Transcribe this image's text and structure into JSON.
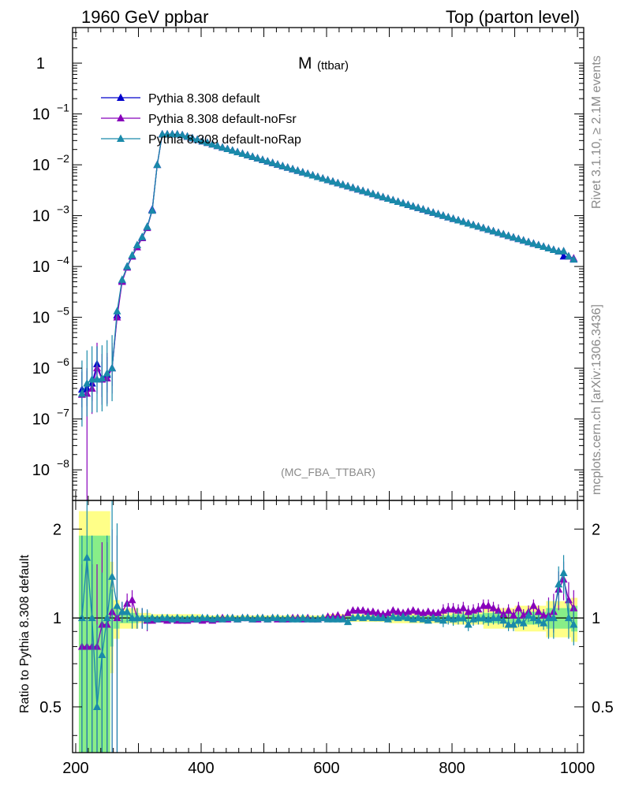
{
  "header": {
    "left": "1960 GeV ppbar",
    "right": "Top (parton level)"
  },
  "side": {
    "rivet": "Rivet 3.1.10, ≥ 2.1M events",
    "mcplots": "mcplots.cern.ch [arXiv:1306.3436]"
  },
  "plot": {
    "title_main": "M",
    "title_sub": "(ttbar)",
    "watermark": "(MC_FBA_TTBAR)"
  },
  "ratio": {
    "ylabel": "Ratio to Pythia 8.308 default"
  },
  "chart_data": {
    "type": "line",
    "x": [
      210,
      218,
      226,
      234,
      242,
      250,
      258,
      266,
      274,
      282,
      290,
      298,
      306,
      314,
      322,
      330,
      338,
      346,
      354,
      362,
      370,
      378,
      386,
      394,
      402,
      410,
      418,
      426,
      434,
      442,
      450,
      458,
      466,
      474,
      482,
      490,
      498,
      506,
      514,
      522,
      530,
      538,
      546,
      554,
      562,
      570,
      578,
      586,
      594,
      602,
      610,
      618,
      626,
      634,
      642,
      650,
      658,
      666,
      674,
      682,
      690,
      698,
      706,
      714,
      722,
      730,
      738,
      746,
      754,
      762,
      770,
      778,
      786,
      794,
      802,
      810,
      818,
      826,
      834,
      842,
      850,
      858,
      866,
      874,
      882,
      890,
      898,
      906,
      914,
      922,
      930,
      938,
      946,
      954,
      962,
      970,
      978,
      986,
      994
    ],
    "series": [
      {
        "name": "Pythia 8.308 default",
        "color": "#0000cc",
        "log10_values": [
          -6.42,
          -6.4,
          -6.3,
          -5.92,
          -6.22,
          -6.13,
          -6.0,
          -4.96,
          -4.28,
          -4.0,
          -3.8,
          -3.58,
          -3.42,
          -3.22,
          -2.88,
          -2.0,
          -1.4,
          -1.4,
          -1.4,
          -1.4,
          -1.415,
          -1.445,
          -1.476,
          -1.506,
          -1.537,
          -1.567,
          -1.598,
          -1.628,
          -1.659,
          -1.689,
          -1.72,
          -1.75,
          -1.781,
          -1.811,
          -1.842,
          -1.872,
          -1.903,
          -1.933,
          -1.964,
          -1.994,
          -2.025,
          -2.055,
          -2.086,
          -2.116,
          -2.147,
          -2.177,
          -2.208,
          -2.238,
          -2.269,
          -2.299,
          -2.33,
          -2.36,
          -2.391,
          -2.421,
          -2.452,
          -2.482,
          -2.513,
          -2.543,
          -2.574,
          -2.604,
          -2.635,
          -2.665,
          -2.696,
          -2.726,
          -2.757,
          -2.787,
          -2.818,
          -2.848,
          -2.879,
          -2.909,
          -2.94,
          -2.97,
          -3.001,
          -3.031,
          -3.062,
          -3.092,
          -3.123,
          -3.153,
          -3.184,
          -3.214,
          -3.245,
          -3.275,
          -3.306,
          -3.336,
          -3.367,
          -3.397,
          -3.428,
          -3.458,
          -3.489,
          -3.519,
          -3.55,
          -3.58,
          -3.611,
          -3.641,
          -3.672,
          -3.702,
          -3.8,
          -3.8,
          -3.86
        ]
      },
      {
        "name": "Pythia 8.308 default-noFsr",
        "color": "#8800bb",
        "log10_values": [
          -6.52,
          -6.5,
          -6.4,
          -6.0,
          -6.22,
          -6.2,
          -6.0,
          -5.0,
          -4.3,
          -4.02,
          -3.8,
          -3.62,
          -3.44,
          -3.24,
          -2.9,
          -2.0,
          -1.4,
          -1.4,
          -1.4,
          -1.4,
          -1.415,
          -1.445,
          -1.476,
          -1.506,
          -1.537,
          -1.567,
          -1.598,
          -1.628,
          -1.659,
          -1.689,
          -1.72,
          -1.75,
          -1.781,
          -1.811,
          -1.842,
          -1.872,
          -1.903,
          -1.933,
          -1.964,
          -1.994,
          -2.025,
          -2.055,
          -2.086,
          -2.116,
          -2.147,
          -2.177,
          -2.208,
          -2.238,
          -2.269,
          -2.299,
          -2.33,
          -2.36,
          -2.391,
          -2.421,
          -2.452,
          -2.482,
          -2.513,
          -2.543,
          -2.574,
          -2.604,
          -2.635,
          -2.665,
          -2.696,
          -2.726,
          -2.757,
          -2.787,
          -2.818,
          -2.848,
          -2.879,
          -2.909,
          -2.94,
          -2.97,
          -3.001,
          -3.031,
          -3.062,
          -3.092,
          -3.123,
          -3.153,
          -3.184,
          -3.214,
          -3.245,
          -3.275,
          -3.306,
          -3.336,
          -3.367,
          -3.397,
          -3.428,
          -3.458,
          -3.489,
          -3.519,
          -3.55,
          -3.58,
          -3.611,
          -3.641,
          -3.672,
          -3.702,
          -3.7,
          -3.8,
          -3.84
        ]
      },
      {
        "name": "Pythia 8.308 default-noRap",
        "color": "#1a8aaa",
        "log10_values": [
          -6.5,
          -6.3,
          -6.22,
          -6.22,
          -6.2,
          -6.1,
          -6.0,
          -4.88,
          -4.26,
          -4.0,
          -3.78,
          -3.58,
          -3.42,
          -3.22,
          -2.9,
          -2.0,
          -1.4,
          -1.4,
          -1.4,
          -1.4,
          -1.415,
          -1.445,
          -1.476,
          -1.506,
          -1.537,
          -1.567,
          -1.598,
          -1.628,
          -1.659,
          -1.689,
          -1.72,
          -1.75,
          -1.781,
          -1.811,
          -1.842,
          -1.872,
          -1.903,
          -1.933,
          -1.964,
          -1.994,
          -2.025,
          -2.055,
          -2.086,
          -2.116,
          -2.147,
          -2.177,
          -2.208,
          -2.238,
          -2.269,
          -2.299,
          -2.33,
          -2.36,
          -2.391,
          -2.421,
          -2.452,
          -2.482,
          -2.513,
          -2.543,
          -2.574,
          -2.604,
          -2.635,
          -2.665,
          -2.696,
          -2.726,
          -2.757,
          -2.787,
          -2.818,
          -2.848,
          -2.879,
          -2.909,
          -2.94,
          -2.97,
          -3.001,
          -3.031,
          -3.062,
          -3.092,
          -3.123,
          -3.153,
          -3.184,
          -3.214,
          -3.245,
          -3.275,
          -3.306,
          -3.336,
          -3.367,
          -3.397,
          -3.428,
          -3.458,
          -3.489,
          -3.519,
          -3.55,
          -3.58,
          -3.611,
          -3.641,
          -3.672,
          -3.702,
          -3.7,
          -3.8,
          -3.86
        ]
      }
    ],
    "main_yscale": "log",
    "main_ylim": [
      2.5e-09,
      5
    ],
    "main_yticks": [
      {
        "label": "1",
        "exp": ""
      },
      {
        "label": "10",
        "exp": "−1"
      },
      {
        "label": "10",
        "exp": "−2"
      },
      {
        "label": "10",
        "exp": "−3"
      },
      {
        "label": "10",
        "exp": "−4"
      },
      {
        "label": "10",
        "exp": "−5"
      },
      {
        "label": "10",
        "exp": "−6"
      },
      {
        "label": "10",
        "exp": "−7"
      },
      {
        "label": "10",
        "exp": "−8"
      }
    ],
    "ratio_series": [
      {
        "name": "Pythia 8.308 default-noFsr",
        "color": "#8800bb",
        "values": [
          0.8,
          0.8,
          0.8,
          0.8,
          0.95,
          0.95,
          1.05,
          1.0,
          1.05,
          1.12,
          1.15,
          1.0,
          1.0,
          0.98,
          0.98,
          0.99,
          0.99,
          0.98,
          0.99,
          0.98,
          0.98,
          0.98,
          0.99,
          0.99,
          0.98,
          0.99,
          0.98,
          0.99,
          1.0,
          0.99,
          1.0,
          0.99,
          1.0,
          1.0,
          0.99,
          0.99,
          1.0,
          0.99,
          1.0,
          0.99,
          0.99,
          0.99,
          1.0,
          1.0,
          0.99,
          1.0,
          0.99,
          0.99,
          1.0,
          1.01,
          1.01,
          1.02,
          1.0,
          1.04,
          1.06,
          1.06,
          1.06,
          1.05,
          1.05,
          1.04,
          1.03,
          1.04,
          1.06,
          1.05,
          1.04,
          1.05,
          1.06,
          1.05,
          1.04,
          1.05,
          1.04,
          1.04,
          1.06,
          1.07,
          1.07,
          1.06,
          1.08,
          1.05,
          1.06,
          1.07,
          1.1,
          1.1,
          1.08,
          1.06,
          1.03,
          1.06,
          1.02,
          1.08,
          1.02,
          1.05,
          1.1,
          1.05,
          1.02,
          1.02,
          1.05,
          1.25,
          1.35,
          1.15,
          1.08
        ]
      },
      {
        "name": "Pythia 8.308 default-noRap",
        "color": "#1a8aaa",
        "values": [
          1.0,
          1.6,
          1.0,
          0.5,
          0.75,
          1.0,
          1.38,
          1.1,
          1.05,
          1.05,
          1.0,
          1.0,
          1.0,
          0.99,
          1.0,
          0.99,
          1.0,
          1.0,
          0.99,
          1.0,
          0.99,
          0.99,
          1.0,
          0.99,
          1.0,
          1.0,
          0.99,
          1.0,
          0.99,
          1.0,
          1.0,
          0.99,
          1.0,
          1.0,
          0.99,
          1.0,
          1.0,
          0.99,
          1.0,
          1.0,
          0.99,
          1.0,
          0.99,
          0.99,
          1.0,
          0.99,
          0.99,
          0.99,
          1.0,
          0.99,
          0.99,
          0.99,
          0.99,
          0.97,
          1.0,
          1.01,
          1.0,
          1.01,
          1.0,
          1.0,
          1.0,
          0.99,
          1.01,
          1.0,
          1.01,
          1.0,
          0.99,
          1.0,
          0.99,
          0.98,
          1.0,
          0.99,
          0.98,
          1.0,
          0.99,
          1.0,
          1.0,
          0.95,
          0.99,
          1.0,
          1.0,
          0.99,
          1.0,
          1.0,
          0.98,
          0.95,
          0.95,
          0.98,
          0.96,
          1.02,
          1.0,
          0.98,
          0.96,
          1.0,
          1.0,
          1.3,
          1.42,
          1.0,
          0.95
        ]
      }
    ],
    "ratio_yscale": "log",
    "ratio_ylim": [
      0.35,
      2.5
    ],
    "ratio_yticks": [
      "0.5",
      "1",
      "2"
    ],
    "xlim": [
      195,
      1010
    ],
    "xticks": [
      "200",
      "400",
      "600",
      "800",
      "1000"
    ],
    "band_edges": [
      205,
      255,
      260,
      270,
      300,
      320,
      400,
      600,
      700,
      800,
      850,
      900,
      950,
      990,
      1000
    ],
    "band_yellow": [
      [
        0.35,
        2.3
      ],
      [
        0.65,
        1.55
      ],
      [
        0.85,
        1.15
      ],
      [
        0.92,
        1.08
      ],
      [
        0.96,
        1.04
      ],
      [
        0.97,
        1.03
      ],
      [
        0.98,
        1.02
      ],
      [
        0.97,
        1.03
      ],
      [
        0.96,
        1.04
      ],
      [
        0.95,
        1.05
      ],
      [
        0.92,
        1.08
      ],
      [
        0.9,
        1.1
      ],
      [
        0.86,
        1.14
      ],
      [
        0.83,
        1.17
      ]
    ],
    "band_green": [
      [
        0.35,
        1.9
      ],
      [
        0.8,
        1.25
      ],
      [
        0.92,
        1.08
      ],
      [
        0.96,
        1.04
      ],
      [
        0.98,
        1.02
      ],
      [
        0.985,
        1.015
      ],
      [
        0.99,
        1.01
      ],
      [
        0.985,
        1.015
      ],
      [
        0.98,
        1.02
      ],
      [
        0.97,
        1.03
      ],
      [
        0.96,
        1.04
      ],
      [
        0.95,
        1.05
      ],
      [
        0.92,
        1.08
      ],
      [
        0.9,
        1.1
      ]
    ]
  }
}
